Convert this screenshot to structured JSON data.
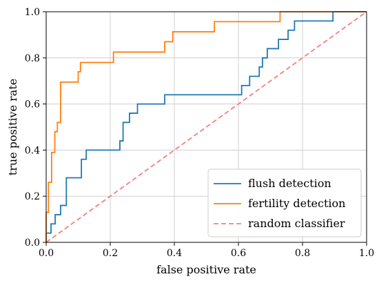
{
  "chart_data": {
    "type": "line",
    "xlabel": "false positive rate",
    "ylabel": "true positive rate",
    "xlim": [
      0.0,
      1.0
    ],
    "ylim": [
      0.0,
      1.0
    ],
    "xticks": [
      "0.0",
      "0.2",
      "0.4",
      "0.6",
      "0.8",
      "1.0"
    ],
    "yticks": [
      "0.0",
      "0.2",
      "0.4",
      "0.6",
      "0.8",
      "1.0"
    ],
    "grid": true,
    "legend_position": "bottom-right",
    "series": [
      {
        "name": "flush detection",
        "color": "#1f77b4",
        "style": "solid",
        "step": true,
        "points": [
          [
            0.0,
            0.0
          ],
          [
            0.0,
            0.04
          ],
          [
            0.015,
            0.04
          ],
          [
            0.015,
            0.08
          ],
          [
            0.028,
            0.08
          ],
          [
            0.028,
            0.12
          ],
          [
            0.045,
            0.12
          ],
          [
            0.045,
            0.16
          ],
          [
            0.063,
            0.16
          ],
          [
            0.063,
            0.28
          ],
          [
            0.11,
            0.28
          ],
          [
            0.11,
            0.36
          ],
          [
            0.125,
            0.36
          ],
          [
            0.125,
            0.4
          ],
          [
            0.23,
            0.4
          ],
          [
            0.23,
            0.44
          ],
          [
            0.24,
            0.44
          ],
          [
            0.24,
            0.52
          ],
          [
            0.26,
            0.52
          ],
          [
            0.26,
            0.56
          ],
          [
            0.285,
            0.56
          ],
          [
            0.285,
            0.6
          ],
          [
            0.37,
            0.6
          ],
          [
            0.37,
            0.64
          ],
          [
            0.61,
            0.64
          ],
          [
            0.61,
            0.68
          ],
          [
            0.635,
            0.68
          ],
          [
            0.635,
            0.72
          ],
          [
            0.665,
            0.72
          ],
          [
            0.665,
            0.76
          ],
          [
            0.675,
            0.76
          ],
          [
            0.675,
            0.8
          ],
          [
            0.69,
            0.8
          ],
          [
            0.69,
            0.84
          ],
          [
            0.725,
            0.84
          ],
          [
            0.725,
            0.88
          ],
          [
            0.755,
            0.88
          ],
          [
            0.755,
            0.92
          ],
          [
            0.775,
            0.92
          ],
          [
            0.775,
            0.96
          ],
          [
            0.895,
            0.96
          ],
          [
            0.895,
            1.0
          ],
          [
            1.0,
            1.0
          ]
        ]
      },
      {
        "name": "fertility detection",
        "color": "#ff7f0e",
        "style": "solid",
        "step": true,
        "points": [
          [
            0.0,
            0.0
          ],
          [
            0.0,
            0.13
          ],
          [
            0.007,
            0.13
          ],
          [
            0.007,
            0.26
          ],
          [
            0.017,
            0.26
          ],
          [
            0.017,
            0.39
          ],
          [
            0.027,
            0.39
          ],
          [
            0.027,
            0.48
          ],
          [
            0.035,
            0.48
          ],
          [
            0.035,
            0.52
          ],
          [
            0.045,
            0.52
          ],
          [
            0.045,
            0.695
          ],
          [
            0.1,
            0.695
          ],
          [
            0.1,
            0.74
          ],
          [
            0.107,
            0.74
          ],
          [
            0.107,
            0.78
          ],
          [
            0.21,
            0.78
          ],
          [
            0.21,
            0.825
          ],
          [
            0.37,
            0.825
          ],
          [
            0.37,
            0.87
          ],
          [
            0.395,
            0.87
          ],
          [
            0.395,
            0.913
          ],
          [
            0.525,
            0.913
          ],
          [
            0.525,
            0.957
          ],
          [
            0.73,
            0.957
          ],
          [
            0.73,
            1.0
          ],
          [
            1.0,
            1.0
          ]
        ]
      },
      {
        "name": "random classifier",
        "color": "#f08080",
        "style": "dashed",
        "step": false,
        "points": [
          [
            0.0,
            0.0
          ],
          [
            1.0,
            1.0
          ]
        ]
      }
    ]
  }
}
